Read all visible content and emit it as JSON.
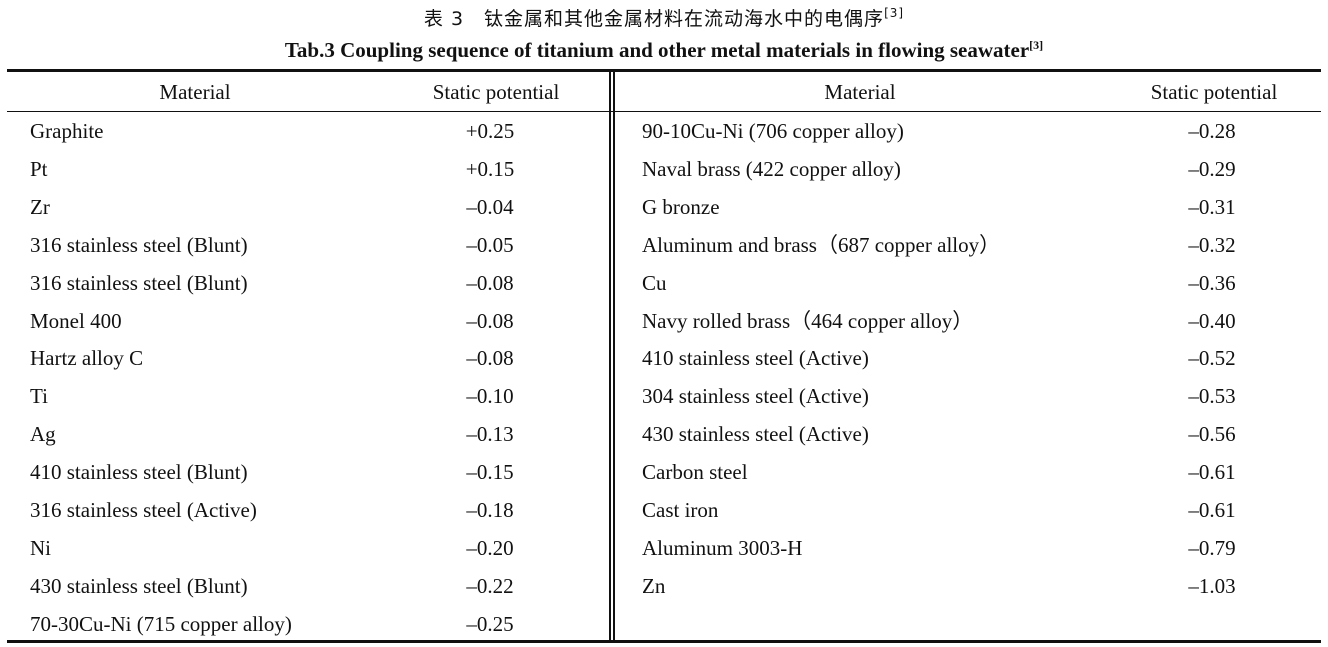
{
  "caption_cn": "表 3　钛金属和其他金属材料在流动海水中的电偶序",
  "caption_en": "Tab.3 Coupling sequence of titanium and other metal materials in flowing seawater",
  "citation": "[3]",
  "headers": {
    "material": "Material",
    "potential": "Static potential"
  },
  "left_rows": [
    {
      "material": "Graphite",
      "potential": "+0.25"
    },
    {
      "material": "Pt",
      "potential": "+0.15"
    },
    {
      "material": "Zr",
      "potential": "–0.04"
    },
    {
      "material": "316 stainless steel (Blunt)",
      "potential": "–0.05"
    },
    {
      "material": "316 stainless steel (Blunt)",
      "potential": "–0.08"
    },
    {
      "material": "Monel 400",
      "potential": "–0.08"
    },
    {
      "material": "Hartz alloy C",
      "potential": "–0.08"
    },
    {
      "material": "Ti",
      "potential": "–0.10"
    },
    {
      "material": "Ag",
      "potential": "–0.13"
    },
    {
      "material": "410 stainless steel (Blunt)",
      "potential": "–0.15"
    },
    {
      "material": "316 stainless steel (Active)",
      "potential": "–0.18"
    },
    {
      "material": "Ni",
      "potential": "–0.20"
    },
    {
      "material": "430 stainless steel (Blunt)",
      "potential": "–0.22"
    },
    {
      "material": "70-30Cu-Ni (715 copper alloy)",
      "potential": "–0.25"
    }
  ],
  "right_rows": [
    {
      "material": "90-10Cu-Ni (706 copper alloy)",
      "potential": "–0.28"
    },
    {
      "material": "Naval brass (422 copper alloy)",
      "potential": "–0.29"
    },
    {
      "material": "G bronze",
      "potential": "–0.31"
    },
    {
      "material": "Aluminum and brass（687 copper alloy）",
      "potential": "–0.32"
    },
    {
      "material": "Cu",
      "potential": "–0.36"
    },
    {
      "material": "Navy rolled brass（464 copper alloy）",
      "potential": "–0.40"
    },
    {
      "material": "410 stainless steel (Active)",
      "potential": "–0.52"
    },
    {
      "material": "304 stainless steel (Active)",
      "potential": "–0.53"
    },
    {
      "material": "430 stainless steel (Active)",
      "potential": "–0.56"
    },
    {
      "material": "Carbon steel",
      "potential": "–0.61"
    },
    {
      "material": "Cast iron",
      "potential": "–0.61"
    },
    {
      "material": "Aluminum 3003-H",
      "potential": "–0.79"
    },
    {
      "material": "Zn",
      "potential": "–1.03"
    }
  ]
}
